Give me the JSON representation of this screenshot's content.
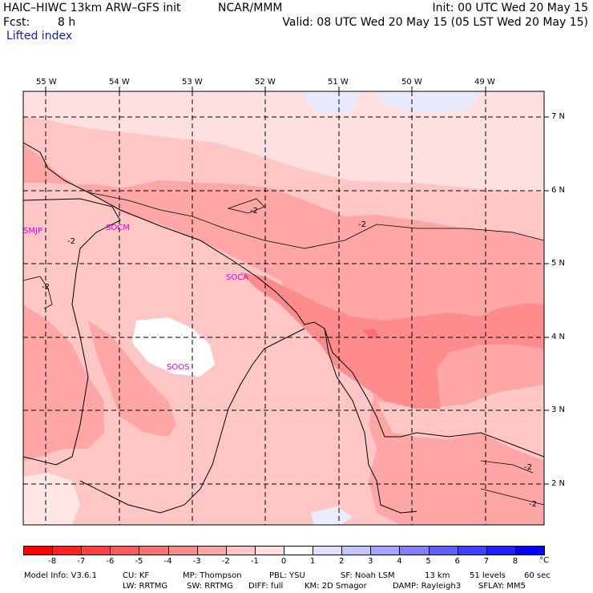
{
  "header": {
    "model_title": "HAIC–HIWC 13km ARW–GFS init",
    "agency": "NCAR/MMM",
    "init_time": "Init: 00 UTC Wed 20 May 15",
    "fcst_label": "Fcst:",
    "fcst_hours": "8 h",
    "valid_time": "Valid: 08 UTC Wed 20 May 15 (05 LST Wed 20 May 15)",
    "field_name": "Lifted index"
  },
  "map": {
    "lon_labels": [
      "55 W",
      "54 W",
      "53 W",
      "52 W",
      "51 W",
      "50 W",
      "49 W"
    ],
    "lat_labels": [
      "7 N",
      "6 N",
      "5 N",
      "4 N",
      "3 N",
      "2 N"
    ],
    "contour_labels": [
      "-2",
      "-2",
      "-2",
      "-2",
      "-2",
      "-2",
      "-2"
    ],
    "stations": [
      "SMJP",
      "SOCM",
      "SOCA",
      "SOOS"
    ]
  },
  "colorbar": {
    "ticks": [
      "-8",
      "-7",
      "-6",
      "-5",
      "-4",
      "-3",
      "-2",
      "-1",
      "0",
      "1",
      "2",
      "3",
      "4",
      "5",
      "6",
      "7",
      "8"
    ],
    "unit": "°C",
    "colors": [
      "#ff0000",
      "#ff2020",
      "#ff4040",
      "#ff5a5a",
      "#ff7070",
      "#ff8c8c",
      "#ffa6a6",
      "#ffc6c6",
      "#ffe0e0",
      "#ffffff",
      "#e0e0ff",
      "#c6c6ff",
      "#a6a6ff",
      "#8080ff",
      "#6060ff",
      "#4040ff",
      "#2020ff",
      "#0000ff"
    ]
  },
  "footer": {
    "line1": [
      "Model Info: V3.6.1",
      "CU: KF",
      "MP: Thompson",
      "PBL: YSU",
      "SF: Noah LSM",
      "13 km",
      "51 levels",
      "60 sec"
    ],
    "line2": [
      "LW: RRTMG",
      "SW: RRTMG",
      "DIFF: full",
      "KM: 2D Smagor",
      "DAMP: Rayleigh3",
      "SFLAY: MM5"
    ]
  }
}
